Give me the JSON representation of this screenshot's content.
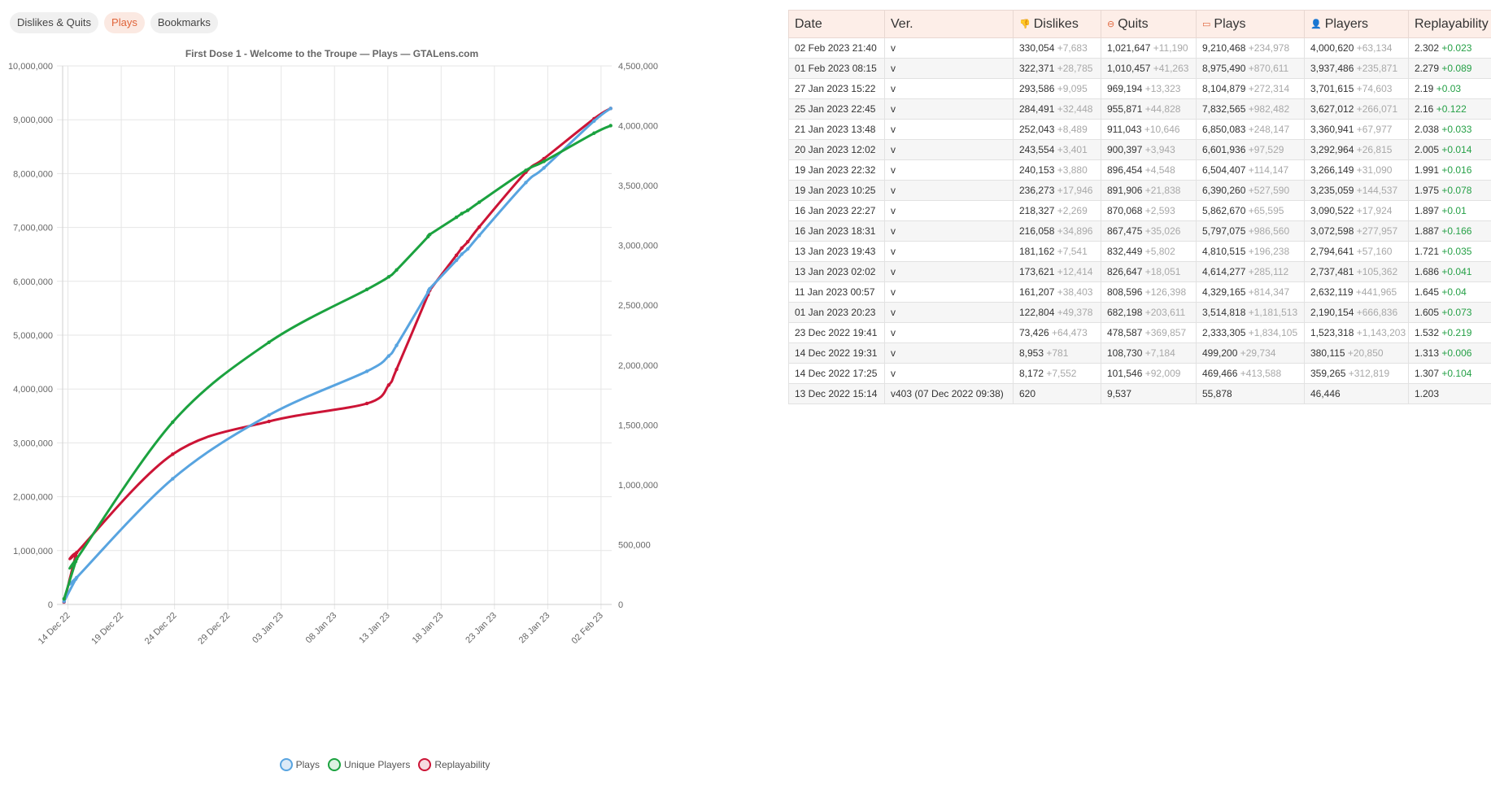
{
  "tabs": [
    "Dislikes & Quits",
    "Plays",
    "Bookmarks"
  ],
  "active_tab": 1,
  "colors": {
    "plays": "#58a4e0",
    "players": "#1ba23f",
    "replay": "#cc1436",
    "grid": "#e6e6e6"
  },
  "chart_data": {
    "type": "line",
    "title": "First Dose 1 - Welcome to the Troupe — Plays — GTALens.com",
    "x_ticks": [
      "14 Dec 22",
      "19 Dec 22",
      "24 Dec 22",
      "29 Dec 22",
      "03 Jan 23",
      "08 Jan 23",
      "13 Jan 23",
      "18 Jan 23",
      "23 Jan 23",
      "28 Jan 23",
      "02 Feb 23"
    ],
    "y_left": {
      "min": 0,
      "max": 10000000,
      "ticks": [
        "0",
        "1,000,000",
        "2,000,000",
        "3,000,000",
        "4,000,000",
        "5,000,000",
        "6,000,000",
        "7,000,000",
        "8,000,000",
        "9,000,000",
        "10,000,000"
      ]
    },
    "y_right": {
      "min": 0,
      "max": 4500000,
      "ticks": [
        "0",
        "500,000",
        "1,000,000",
        "1,500,000",
        "2,000,000",
        "2,500,000",
        "3,000,000",
        "3,500,000",
        "4,000,000",
        "4,500,000"
      ]
    },
    "x": [
      "2022-12-13 15:14",
      "2022-12-14 17:25",
      "2022-12-14 19:31",
      "2022-12-23 19:41",
      "2023-01-01 20:23",
      "2023-01-11 00:57",
      "2023-01-13 02:02",
      "2023-01-13 19:43",
      "2023-01-16 18:31",
      "2023-01-16 22:27",
      "2023-01-19 10:25",
      "2023-01-19 22:32",
      "2023-01-20 12:02",
      "2023-01-21 13:48",
      "2023-01-25 22:45",
      "2023-01-27 15:22",
      "2023-02-01 08:15",
      "2023-02-02 21:40"
    ],
    "series": [
      {
        "name": "Plays",
        "axis": "left",
        "values": [
          55878,
          469466,
          499200,
          2333305,
          3514818,
          4329165,
          4614277,
          4810515,
          5797075,
          5862670,
          6390260,
          6504407,
          6601936,
          6850083,
          7832565,
          8104879,
          8975490,
          9210468
        ]
      },
      {
        "name": "Unique Players",
        "axis": "right",
        "values": [
          46446,
          359265,
          380115,
          1523318,
          2190154,
          2632119,
          2737481,
          2794641,
          3072598,
          3090522,
          3235059,
          3266149,
          3292964,
          3360941,
          3627012,
          3701615,
          3937486,
          4000620
        ]
      },
      {
        "name": "Replayability",
        "axis": "hidden",
        "values": [
          1.203,
          1.307,
          1.313,
          1.532,
          1.605,
          1.645,
          1.686,
          1.721,
          1.887,
          1.897,
          1.975,
          1.991,
          2.005,
          2.038,
          2.16,
          2.19,
          2.279,
          2.302
        ]
      }
    ]
  },
  "table": {
    "headers": [
      "Date",
      "Ver.",
      "Dislikes",
      "Quits",
      "Plays",
      "Players",
      "Replayability"
    ],
    "header_icons": [
      "",
      "",
      "👎",
      "⊖",
      "▭",
      "👤",
      ""
    ],
    "rows": [
      {
        "date": "02 Feb 2023 21:40",
        "ver": "v",
        "dislikes": "330,054",
        "dislikes_d": "+7,683",
        "quits": "1,021,647",
        "quits_d": "+11,190",
        "plays": "9,210,468",
        "plays_d": "+234,978",
        "players": "4,000,620",
        "players_d": "+63,134",
        "replay": "2.302",
        "replay_d": "+0.023"
      },
      {
        "date": "01 Feb 2023 08:15",
        "ver": "v",
        "dislikes": "322,371",
        "dislikes_d": "+28,785",
        "quits": "1,010,457",
        "quits_d": "+41,263",
        "plays": "8,975,490",
        "plays_d": "+870,611",
        "players": "3,937,486",
        "players_d": "+235,871",
        "replay": "2.279",
        "replay_d": "+0.089"
      },
      {
        "date": "27 Jan 2023 15:22",
        "ver": "v",
        "dislikes": "293,586",
        "dislikes_d": "+9,095",
        "quits": "969,194",
        "quits_d": "+13,323",
        "plays": "8,104,879",
        "plays_d": "+272,314",
        "players": "3,701,615",
        "players_d": "+74,603",
        "replay": "2.19",
        "replay_d": "+0.03"
      },
      {
        "date": "25 Jan 2023 22:45",
        "ver": "v",
        "dislikes": "284,491",
        "dislikes_d": "+32,448",
        "quits": "955,871",
        "quits_d": "+44,828",
        "plays": "7,832,565",
        "plays_d": "+982,482",
        "players": "3,627,012",
        "players_d": "+266,071",
        "replay": "2.16",
        "replay_d": "+0.122"
      },
      {
        "date": "21 Jan 2023 13:48",
        "ver": "v",
        "dislikes": "252,043",
        "dislikes_d": "+8,489",
        "quits": "911,043",
        "quits_d": "+10,646",
        "plays": "6,850,083",
        "plays_d": "+248,147",
        "players": "3,360,941",
        "players_d": "+67,977",
        "replay": "2.038",
        "replay_d": "+0.033"
      },
      {
        "date": "20 Jan 2023 12:02",
        "ver": "v",
        "dislikes": "243,554",
        "dislikes_d": "+3,401",
        "quits": "900,397",
        "quits_d": "+3,943",
        "plays": "6,601,936",
        "plays_d": "+97,529",
        "players": "3,292,964",
        "players_d": "+26,815",
        "replay": "2.005",
        "replay_d": "+0.014"
      },
      {
        "date": "19 Jan 2023 22:32",
        "ver": "v",
        "dislikes": "240,153",
        "dislikes_d": "+3,880",
        "quits": "896,454",
        "quits_d": "+4,548",
        "plays": "6,504,407",
        "plays_d": "+114,147",
        "players": "3,266,149",
        "players_d": "+31,090",
        "replay": "1.991",
        "replay_d": "+0.016"
      },
      {
        "date": "19 Jan 2023 10:25",
        "ver": "v",
        "dislikes": "236,273",
        "dislikes_d": "+17,946",
        "quits": "891,906",
        "quits_d": "+21,838",
        "plays": "6,390,260",
        "plays_d": "+527,590",
        "players": "3,235,059",
        "players_d": "+144,537",
        "replay": "1.975",
        "replay_d": "+0.078"
      },
      {
        "date": "16 Jan 2023 22:27",
        "ver": "v",
        "dislikes": "218,327",
        "dislikes_d": "+2,269",
        "quits": "870,068",
        "quits_d": "+2,593",
        "plays": "5,862,670",
        "plays_d": "+65,595",
        "players": "3,090,522",
        "players_d": "+17,924",
        "replay": "1.897",
        "replay_d": "+0.01"
      },
      {
        "date": "16 Jan 2023 18:31",
        "ver": "v",
        "dislikes": "216,058",
        "dislikes_d": "+34,896",
        "quits": "867,475",
        "quits_d": "+35,026",
        "plays": "5,797,075",
        "plays_d": "+986,560",
        "players": "3,072,598",
        "players_d": "+277,957",
        "replay": "1.887",
        "replay_d": "+0.166"
      },
      {
        "date": "13 Jan 2023 19:43",
        "ver": "v",
        "dislikes": "181,162",
        "dislikes_d": "+7,541",
        "quits": "832,449",
        "quits_d": "+5,802",
        "plays": "4,810,515",
        "plays_d": "+196,238",
        "players": "2,794,641",
        "players_d": "+57,160",
        "replay": "1.721",
        "replay_d": "+0.035"
      },
      {
        "date": "13 Jan 2023 02:02",
        "ver": "v",
        "dislikes": "173,621",
        "dislikes_d": "+12,414",
        "quits": "826,647",
        "quits_d": "+18,051",
        "plays": "4,614,277",
        "plays_d": "+285,112",
        "players": "2,737,481",
        "players_d": "+105,362",
        "replay": "1.686",
        "replay_d": "+0.041"
      },
      {
        "date": "11 Jan 2023 00:57",
        "ver": "v",
        "dislikes": "161,207",
        "dislikes_d": "+38,403",
        "quits": "808,596",
        "quits_d": "+126,398",
        "plays": "4,329,165",
        "plays_d": "+814,347",
        "players": "2,632,119",
        "players_d": "+441,965",
        "replay": "1.645",
        "replay_d": "+0.04"
      },
      {
        "date": "01 Jan 2023 20:23",
        "ver": "v",
        "dislikes": "122,804",
        "dislikes_d": "+49,378",
        "quits": "682,198",
        "quits_d": "+203,611",
        "plays": "3,514,818",
        "plays_d": "+1,181,513",
        "players": "2,190,154",
        "players_d": "+666,836",
        "replay": "1.605",
        "replay_d": "+0.073"
      },
      {
        "date": "23 Dec 2022 19:41",
        "ver": "v",
        "dislikes": "73,426",
        "dislikes_d": "+64,473",
        "quits": "478,587",
        "quits_d": "+369,857",
        "plays": "2,333,305",
        "plays_d": "+1,834,105",
        "players": "1,523,318",
        "players_d": "+1,143,203",
        "replay": "1.532",
        "replay_d": "+0.219"
      },
      {
        "date": "14 Dec 2022 19:31",
        "ver": "v",
        "dislikes": "8,953",
        "dislikes_d": "+781",
        "quits": "108,730",
        "quits_d": "+7,184",
        "plays": "499,200",
        "plays_d": "+29,734",
        "players": "380,115",
        "players_d": "+20,850",
        "replay": "1.313",
        "replay_d": "+0.006"
      },
      {
        "date": "14 Dec 2022 17:25",
        "ver": "v",
        "dislikes": "8,172",
        "dislikes_d": "+7,552",
        "quits": "101,546",
        "quits_d": "+92,009",
        "plays": "469,466",
        "plays_d": "+413,588",
        "players": "359,265",
        "players_d": "+312,819",
        "replay": "1.307",
        "replay_d": "+0.104"
      },
      {
        "date": "13 Dec 2022 15:14",
        "ver": "v403 (07 Dec 2022 09:38)",
        "dislikes": "620",
        "dislikes_d": "",
        "quits": "9,537",
        "quits_d": "",
        "plays": "55,878",
        "plays_d": "",
        "players": "46,446",
        "players_d": "",
        "replay": "1.203",
        "replay_d": ""
      }
    ]
  }
}
